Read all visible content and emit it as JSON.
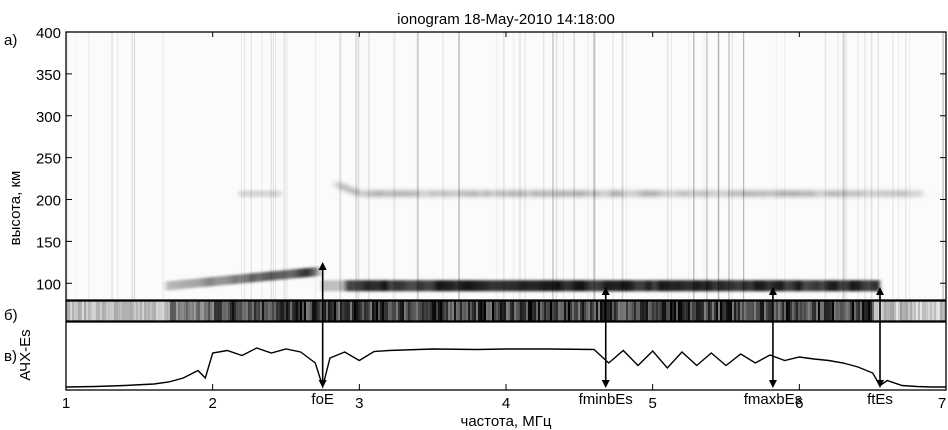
{
  "chart_data": {
    "type": "heatmap",
    "title": "ionogram 18-May-2010 14:18:00",
    "xlabel": "частота, МГц",
    "ylabel": "высота, км",
    "xlim": [
      1,
      7
    ],
    "ylim": [
      80,
      400
    ],
    "x_ticks": [
      "1",
      "2",
      "3",
      "4",
      "5",
      "6",
      "7"
    ],
    "y_ticks": [
      "100",
      "150",
      "200",
      "250",
      "300",
      "350",
      "400"
    ],
    "panel_labels": [
      "а)",
      "б)",
      "в)"
    ],
    "bottom_panel_ylabel": "АЧХ-Es",
    "traces": [
      {
        "layer": "Es",
        "height_km": 97,
        "f_start": 1.7,
        "f_end": 6.55
      },
      {
        "layer": "F",
        "height_km": 207,
        "f_start": 2.85,
        "f_end": 6.85
      },
      {
        "layer": "E-weak",
        "height_km": 207,
        "f_start": 2.2,
        "f_end": 2.45
      }
    ],
    "markers": [
      {
        "label": "foE",
        "freq": 2.75
      },
      {
        "label": "fminbEs",
        "freq": 4.68
      },
      {
        "label": "fmaxbEs",
        "freq": 5.82
      },
      {
        "label": "ftEs",
        "freq": 6.55
      }
    ],
    "response_curve": {
      "x": [
        1.0,
        1.2,
        1.4,
        1.6,
        1.7,
        1.8,
        1.9,
        1.95,
        2.0,
        2.1,
        2.2,
        2.3,
        2.4,
        2.5,
        2.6,
        2.7,
        2.75,
        2.8,
        2.9,
        3.0,
        3.1,
        3.2,
        3.3,
        3.5,
        3.8,
        4.0,
        4.3,
        4.6,
        4.7,
        4.8,
        4.9,
        5.0,
        5.1,
        5.2,
        5.3,
        5.4,
        5.5,
        5.6,
        5.7,
        5.8,
        5.9,
        6.0,
        6.1,
        6.2,
        6.3,
        6.4,
        6.5,
        6.55,
        6.6,
        6.7,
        6.8,
        6.9,
        7.0
      ],
      "y": [
        0.02,
        0.03,
        0.05,
        0.08,
        0.12,
        0.2,
        0.35,
        0.2,
        0.7,
        0.75,
        0.65,
        0.8,
        0.7,
        0.78,
        0.72,
        0.5,
        0.03,
        0.6,
        0.72,
        0.55,
        0.73,
        0.75,
        0.76,
        0.78,
        0.77,
        0.78,
        0.78,
        0.77,
        0.5,
        0.75,
        0.45,
        0.74,
        0.4,
        0.72,
        0.45,
        0.7,
        0.45,
        0.68,
        0.5,
        0.66,
        0.55,
        0.62,
        0.58,
        0.55,
        0.5,
        0.42,
        0.3,
        0.05,
        0.15,
        0.05,
        0.03,
        0.02,
        0.02
      ]
    }
  }
}
